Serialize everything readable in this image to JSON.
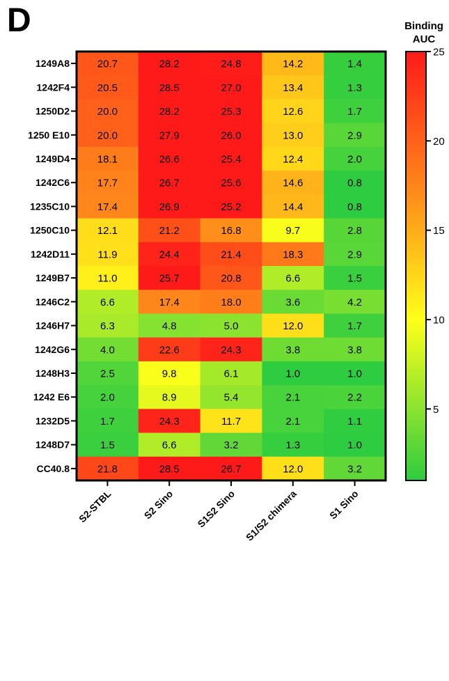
{
  "panel_label": "D",
  "chart_data": {
    "type": "heatmap",
    "rows": [
      "1249A8",
      "1242F4",
      "1250D2",
      "1250 E10",
      "1249D4",
      "1242C6",
      "1235C10",
      "1250C10",
      "1242D11",
      "1249B7",
      "1246C2",
      "1246H7",
      "1242G6",
      "1248H3",
      "1242 E6",
      "1232D5",
      "1248D7",
      "CC40.8"
    ],
    "columns": [
      "S2-STBL",
      "S2 Sino",
      "S1S2 Sino",
      "S1/S2 chimera",
      "S1 Sino"
    ],
    "values": [
      [
        "20.7",
        "28.2",
        "24.8",
        "14.2",
        "1.4"
      ],
      [
        "20.5",
        "28.5",
        "27.0",
        "13.4",
        "1.3"
      ],
      [
        "20.0",
        "28.2",
        "25.3",
        "12.6",
        "1.7"
      ],
      [
        "20.0",
        "27.9",
        "26.0",
        "13.0",
        "2.9"
      ],
      [
        "18.1",
        "26.6",
        "25.4",
        "12.4",
        "2.0"
      ],
      [
        "17.7",
        "26.7",
        "25.6",
        "14.6",
        "0.8"
      ],
      [
        "17.4",
        "26.9",
        "25.2",
        "14.4",
        "0.8"
      ],
      [
        "12.1",
        "21.2",
        "16.8",
        "9.7",
        "2.8"
      ],
      [
        "11.9",
        "24.4",
        "21.4",
        "18.3",
        "2.9"
      ],
      [
        "11.0",
        "25.7",
        "20.8",
        "6.6",
        "1.5"
      ],
      [
        "6.6",
        "17.4",
        "18.0",
        "3.6",
        "4.2"
      ],
      [
        "6.3",
        "4.8",
        "5.0",
        "12.0",
        "1.7"
      ],
      [
        "4.0",
        "22.6",
        "24.3",
        "3.8",
        "3.8"
      ],
      [
        "2.5",
        "9.8",
        "6.1",
        "1.0",
        "1.0"
      ],
      [
        "2.0",
        "8.9",
        "5.4",
        "2.1",
        "2.2"
      ],
      [
        "1.7",
        "24.3",
        "11.7",
        "2.1",
        "1.1"
      ],
      [
        "1.5",
        "6.6",
        "3.2",
        "1.3",
        "1.0"
      ],
      [
        "21.8",
        "28.5",
        "26.7",
        "12.0",
        "3.2"
      ]
    ],
    "colorbar": {
      "title_lines": [
        "Binding",
        "AUC"
      ],
      "min": 1,
      "max": 25,
      "ticks": [
        5,
        10,
        15,
        20,
        25
      ],
      "stops": [
        {
          "value": 1,
          "color": "#2ecc40"
        },
        {
          "value": 10,
          "color": "#ffff1a"
        },
        {
          "value": 17,
          "color": "#ff8c1a"
        },
        {
          "value": 25,
          "color": "#ff1a1a"
        }
      ]
    }
  }
}
